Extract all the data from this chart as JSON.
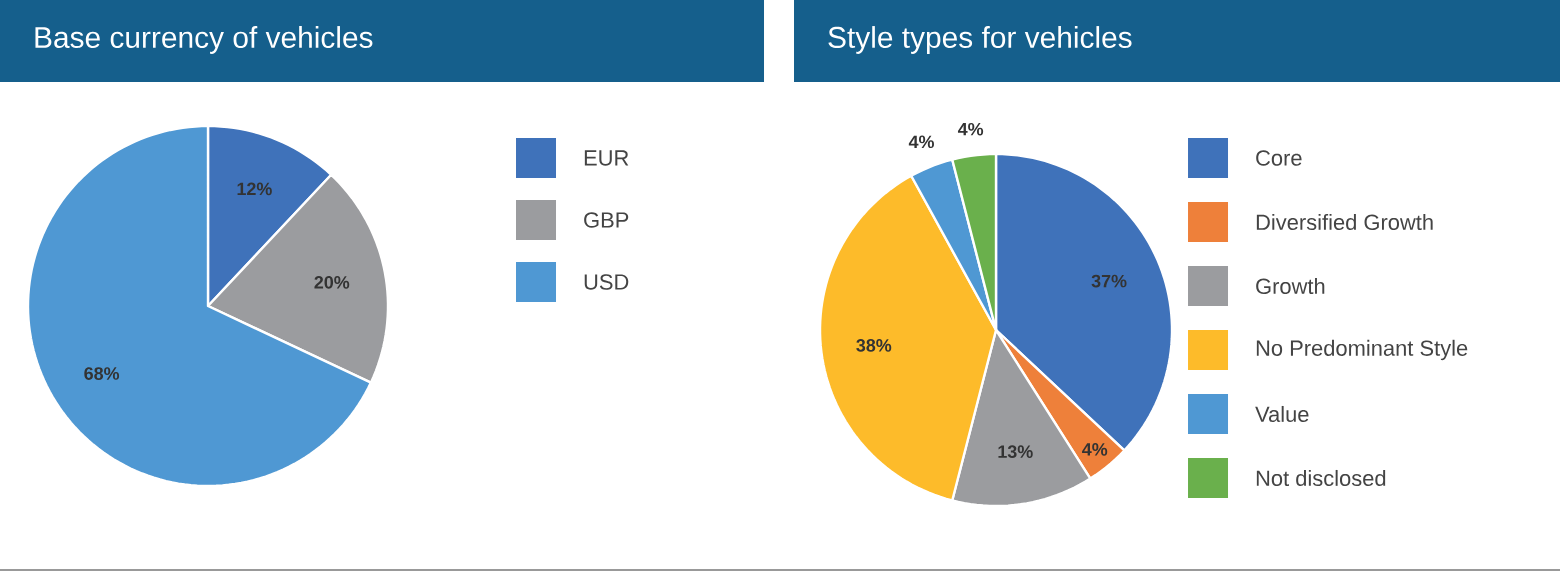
{
  "chart_data": [
    {
      "type": "pie",
      "title": "Base currency of vehicles",
      "legend": "right",
      "categories": [
        "EUR",
        "GBP",
        "USD"
      ],
      "values": [
        12,
        20,
        68
      ],
      "colors": [
        "#3f72ba",
        "#9b9c9f",
        "#4f98d3"
      ],
      "value_labels": [
        "12%",
        "20%",
        "68%"
      ]
    },
    {
      "type": "pie",
      "title": "Style types for vehicles",
      "legend": "right",
      "categories": [
        "Core",
        "Diversified Growth",
        "Growth",
        "No Predominant Style",
        "Value",
        "Not disclosed"
      ],
      "values": [
        37,
        4,
        13,
        38,
        4,
        4
      ],
      "colors": [
        "#3f72ba",
        "#ee803a",
        "#9b9c9f",
        "#fdbb2a",
        "#4f98d3",
        "#6ab04c"
      ],
      "value_labels": [
        "37%",
        "4%",
        "13%",
        "38%",
        "4%",
        "4%"
      ]
    }
  ]
}
